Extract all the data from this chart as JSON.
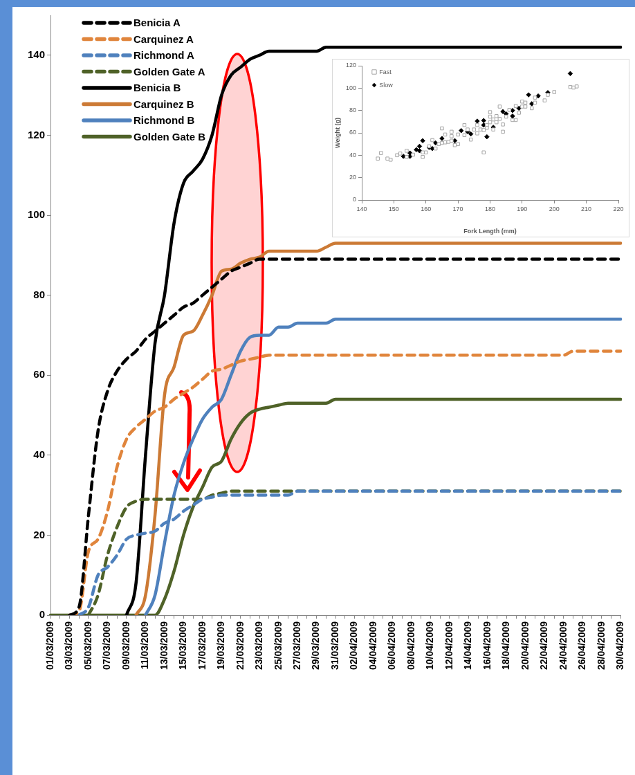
{
  "chart_data": [
    {
      "type": "line",
      "categories": [
        "01/03/2009",
        null,
        "03/03/2009",
        null,
        "05/03/2009",
        null,
        "07/03/2009",
        null,
        "09/03/2009",
        null,
        "11/03/2009",
        null,
        "13/03/2009",
        null,
        "15/03/2009",
        null,
        "17/03/2009",
        null,
        "19/03/2009",
        null,
        "21/03/2009",
        null,
        "23/03/2009",
        null,
        "25/03/2009",
        null,
        "27/03/2009",
        null,
        "29/03/2009",
        null,
        "31/03/2009",
        null,
        "02/04/2009",
        null,
        "04/04/2009",
        null,
        "06/04/2009",
        null,
        "08/04/2009",
        null,
        "10/04/2009",
        null,
        "12/04/2009",
        null,
        "14/04/2009",
        null,
        "16/04/2009",
        null,
        "18/04/2009",
        null,
        "20/04/2009",
        null,
        "22/04/2009",
        null,
        "24/04/2009",
        null,
        "26/04/2009",
        null,
        "28/04/2009",
        null,
        "30/04/2009"
      ],
      "series": [
        {
          "name": "Benicia A",
          "color": "#000000",
          "line_style": "dashed",
          "values": [
            null,
            null,
            0,
            2,
            25,
            46,
            56,
            61,
            64,
            66,
            69,
            71,
            73,
            75,
            77,
            78,
            80,
            82,
            84,
            86,
            87,
            88,
            89,
            89,
            89,
            89,
            89,
            89,
            89,
            89,
            89,
            89,
            89,
            89,
            89,
            89,
            89,
            89,
            89,
            89,
            89,
            89,
            89,
            89,
            89,
            89,
            89,
            89,
            89,
            89,
            89,
            89,
            89,
            89,
            89,
            89,
            89,
            89,
            89,
            89,
            89
          ]
        },
        {
          "name": "Carquinez A",
          "color": "#e0853c",
          "line_style": "dashed",
          "values": [
            null,
            null,
            0,
            1,
            16,
            19,
            26,
            37,
            44,
            47,
            49,
            51,
            52,
            54,
            55.5,
            57,
            59,
            61,
            61.5,
            62.5,
            63.5,
            64,
            64.5,
            65,
            65,
            65,
            65,
            65,
            65,
            65,
            65,
            65,
            65,
            65,
            65,
            65,
            65,
            65,
            65,
            65,
            65,
            65,
            65,
            65,
            65,
            65,
            65,
            65,
            65,
            65,
            65,
            65,
            65,
            65,
            65,
            66,
            66,
            66,
            66,
            66,
            66
          ]
        },
        {
          "name": "Richmond A",
          "color": "#4f81bd",
          "line_style": "dashed",
          "values": [
            null,
            null,
            null,
            0,
            2,
            10,
            12,
            15,
            19,
            20,
            20.5,
            21,
            23,
            24,
            26,
            27.5,
            29,
            29.5,
            30,
            30,
            30,
            30,
            30,
            30,
            30,
            30,
            31,
            31,
            31,
            31,
            31,
            31,
            31,
            31,
            31,
            31,
            31,
            31,
            31,
            31,
            31,
            31,
            31,
            31,
            31,
            31,
            31,
            31,
            31,
            31,
            31,
            31,
            31,
            31,
            31,
            31,
            31,
            31,
            31,
            31,
            31
          ]
        },
        {
          "name": "Golden Gate A",
          "color": "#4f6228",
          "line_style": "dashed",
          "values": [
            null,
            null,
            null,
            null,
            0,
            5,
            15,
            22,
            27,
            28.5,
            29,
            29,
            29,
            29,
            29,
            29,
            29,
            30,
            30.5,
            31,
            31,
            31,
            31,
            31,
            31,
            31,
            31,
            31,
            31,
            31,
            31,
            31,
            31,
            31,
            31,
            31,
            31,
            31,
            31,
            31,
            31,
            31,
            31,
            31,
            31,
            31,
            31,
            31,
            31,
            31,
            31,
            31,
            31,
            31,
            31,
            31,
            31,
            31,
            31,
            31,
            31
          ]
        },
        {
          "name": "Benicia B",
          "color": "#000000",
          "line_style": "solid",
          "values": [
            null,
            null,
            null,
            null,
            null,
            null,
            null,
            null,
            0,
            8,
            40,
            68,
            80,
            98,
            108,
            111,
            114,
            120,
            130,
            135,
            137,
            139,
            140,
            141,
            141,
            141,
            141,
            141,
            141,
            142,
            142,
            142,
            142,
            142,
            142,
            142,
            142,
            142,
            142,
            142,
            142,
            142,
            142,
            142,
            142,
            142,
            142,
            142,
            142,
            142,
            142,
            142,
            142,
            142,
            142,
            142,
            142,
            142,
            142,
            142,
            142
          ]
        },
        {
          "name": "Carquinez B",
          "color": "#cc7a35",
          "line_style": "solid",
          "values": [
            null,
            null,
            null,
            null,
            null,
            null,
            null,
            null,
            null,
            0,
            5,
            25,
            55,
            62,
            70,
            71,
            75,
            80,
            86,
            86.5,
            88,
            89,
            89.5,
            91,
            91,
            91,
            91,
            91,
            91,
            92,
            93,
            93,
            93,
            93,
            93,
            93,
            93,
            93,
            93,
            93,
            93,
            93,
            93,
            93,
            93,
            93,
            93,
            93,
            93,
            93,
            93,
            93,
            93,
            93,
            93,
            93,
            93,
            93,
            93,
            93,
            93
          ]
        },
        {
          "name": "Richmond B",
          "color": "#4f81bd",
          "line_style": "solid",
          "values": [
            null,
            null,
            null,
            null,
            null,
            null,
            null,
            null,
            null,
            null,
            0,
            5,
            18,
            30,
            38,
            44,
            49,
            52,
            54,
            60,
            66,
            69.5,
            70,
            70,
            72,
            72,
            73,
            73,
            73,
            73,
            74,
            74,
            74,
            74,
            74,
            74,
            74,
            74,
            74,
            74,
            74,
            74,
            74,
            74,
            74,
            74,
            74,
            74,
            74,
            74,
            74,
            74,
            74,
            74,
            74,
            74,
            74,
            74,
            74,
            74,
            74
          ]
        },
        {
          "name": "Golden Gate B",
          "color": "#4f6228",
          "line_style": "solid",
          "values": [
            0,
            0,
            0,
            0,
            0,
            0,
            0,
            0,
            0,
            0,
            0,
            0,
            4,
            11,
            20,
            27,
            32,
            37,
            38.5,
            44,
            48,
            50.5,
            51.5,
            52,
            52.5,
            53,
            53,
            53,
            53,
            53,
            54,
            54,
            54,
            54,
            54,
            54,
            54,
            54,
            54,
            54,
            54,
            54,
            54,
            54,
            54,
            54,
            54,
            54,
            54,
            54,
            54,
            54,
            54,
            54,
            54,
            54,
            54,
            54,
            54,
            54,
            54
          ]
        }
      ],
      "ylim": [
        0,
        150
      ],
      "yticks": [
        0,
        20,
        40,
        60,
        80,
        100,
        120,
        140
      ],
      "grid": false,
      "legend": "top left",
      "marker": "none"
    },
    {
      "type": "scatter",
      "xlabel": "Fork Length (mm)",
      "ylabel": "Weight (g)",
      "xlim": [
        140,
        220
      ],
      "xticks": [
        140,
        150,
        160,
        170,
        180,
        190,
        200,
        210,
        220
      ],
      "ylim": [
        0,
        120
      ],
      "yticks": [
        0,
        20,
        40,
        60,
        80,
        100,
        120
      ],
      "grid": false,
      "legend": "top left",
      "series": [
        {
          "name": "Fast",
          "color": "#a6a6a6",
          "marker": "square",
          "x": [
            145,
            146,
            148,
            149,
            151,
            152,
            154,
            154,
            156,
            159,
            159,
            160,
            161,
            162,
            163,
            164,
            165,
            165,
            166,
            166,
            167,
            168,
            168,
            168,
            169,
            170,
            170,
            172,
            172,
            173,
            174,
            175,
            176,
            176,
            177,
            178,
            178,
            179,
            179,
            180,
            180,
            180,
            181,
            181,
            182,
            182,
            183,
            183,
            184,
            184,
            185,
            186,
            187,
            188,
            188,
            189,
            190,
            190,
            191,
            191,
            193,
            194,
            194,
            197,
            198,
            200,
            205,
            206,
            207
          ],
          "values": [
            37,
            42,
            37,
            36,
            40,
            41.5,
            44,
            38.5,
            40.5,
            38.5,
            42.5,
            42.5,
            48,
            53.5,
            46,
            50,
            64,
            51,
            58.5,
            51.5,
            52,
            61,
            57,
            53,
            49,
            50,
            58.5,
            67,
            58,
            63,
            54,
            63,
            59.5,
            67,
            63,
            42.5,
            62.5,
            67,
            64.5,
            78.5,
            74.5,
            69.5,
            63,
            72,
            75,
            69.5,
            83.5,
            72.5,
            61,
            67.5,
            74.5,
            80.5,
            71.5,
            71.5,
            84,
            78,
            88,
            83.5,
            87,
            83.5,
            82,
            91.5,
            87,
            89,
            94,
            96.5,
            101,
            100.5,
            101.5
          ]
        },
        {
          "name": "Slow",
          "color": "#000000",
          "marker": "diamond",
          "x": [
            153,
            155,
            155,
            157,
            158,
            158,
            159,
            161,
            162,
            163,
            165,
            169,
            171,
            173,
            174,
            176,
            178,
            178,
            179,
            181,
            184,
            185,
            187,
            187,
            189,
            192,
            193,
            195,
            198,
            205
          ],
          "values": [
            39,
            39,
            42,
            45,
            44,
            48,
            53,
            47,
            46,
            51,
            55,
            53,
            62,
            61,
            59,
            70.5,
            71,
            67,
            56.5,
            65,
            79,
            77,
            80,
            75,
            82,
            94,
            86,
            93,
            96,
            113
          ]
        }
      ]
    }
  ]
}
